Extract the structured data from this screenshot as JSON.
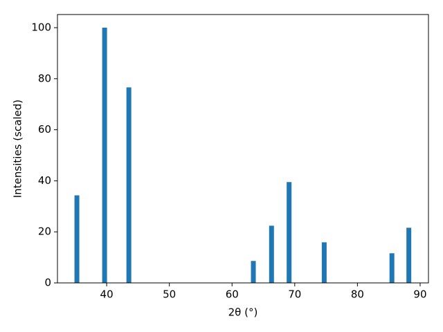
{
  "chart_data": {
    "type": "bar",
    "x": [
      35.25,
      39.67,
      43.54,
      63.4,
      66.3,
      69.1,
      74.7,
      85.5,
      88.2
    ],
    "values": [
      34.3,
      100,
      76.6,
      8.6,
      22.4,
      39.5,
      15.9,
      11.6,
      21.6
    ],
    "color": "#1f77b4",
    "xlabel": "2θ (°)",
    "ylabel": "Intensities (scaled)",
    "xlim": [
      32.15,
      91.33
    ],
    "xticks": [
      40,
      50,
      60,
      70,
      80,
      90
    ],
    "ylim": [
      0,
      105.15
    ],
    "yticks": [
      0,
      20,
      40,
      60,
      80,
      100
    ]
  }
}
